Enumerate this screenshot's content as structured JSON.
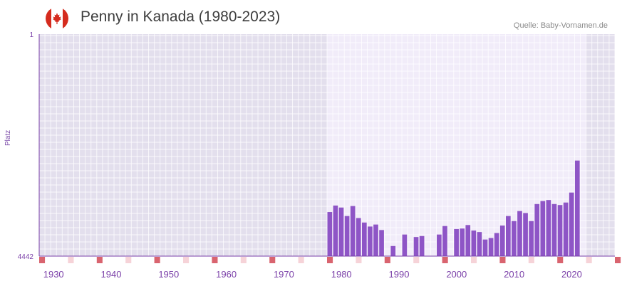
{
  "header": {
    "title": "Penny in Kanada (1980-2023)",
    "source": "Quelle: Baby-Vornamen.de"
  },
  "colors": {
    "bar": "#8e55c6",
    "axis": "#7a3fa8",
    "marker_strong": "#d9646f",
    "marker_light": "#f6d3d8"
  },
  "chart_data": {
    "type": "bar",
    "title": "Penny in Kanada (1980-2023)",
    "xlabel": "",
    "ylabel": "Platz",
    "y_axis_inverted": true,
    "ylim": [
      1,
      4442
    ],
    "ytick_labels": [
      "1",
      "4442"
    ],
    "xlim": [
      1928,
      2028
    ],
    "xtick_labels": [
      "1930",
      "1940",
      "1950",
      "1960",
      "1970",
      "1980",
      "1990",
      "2000",
      "2010",
      "2020"
    ],
    "series": [
      {
        "name": "Penny",
        "x": [
          1978,
          1979,
          1980,
          1981,
          1982,
          1983,
          1984,
          1985,
          1986,
          1987,
          1989,
          1991,
          1993,
          1994,
          1997,
          1998,
          2000,
          2001,
          2002,
          2003,
          2004,
          2005,
          2006,
          2007,
          2008,
          2009,
          2010,
          2011,
          2012,
          2013,
          2014,
          2015,
          2016,
          2017,
          2018,
          2019,
          2020,
          2021
        ],
        "values": [
          3560,
          3430,
          3470,
          3640,
          3440,
          3680,
          3770,
          3850,
          3810,
          3920,
          4240,
          4010,
          4060,
          4040,
          4010,
          3840,
          3900,
          3890,
          3820,
          3930,
          3960,
          4110,
          4080,
          3980,
          3830,
          3640,
          3740,
          3540,
          3580,
          3740,
          3400,
          3340,
          3320,
          3400,
          3420,
          3370,
          3170,
          2530
        ]
      }
    ]
  }
}
